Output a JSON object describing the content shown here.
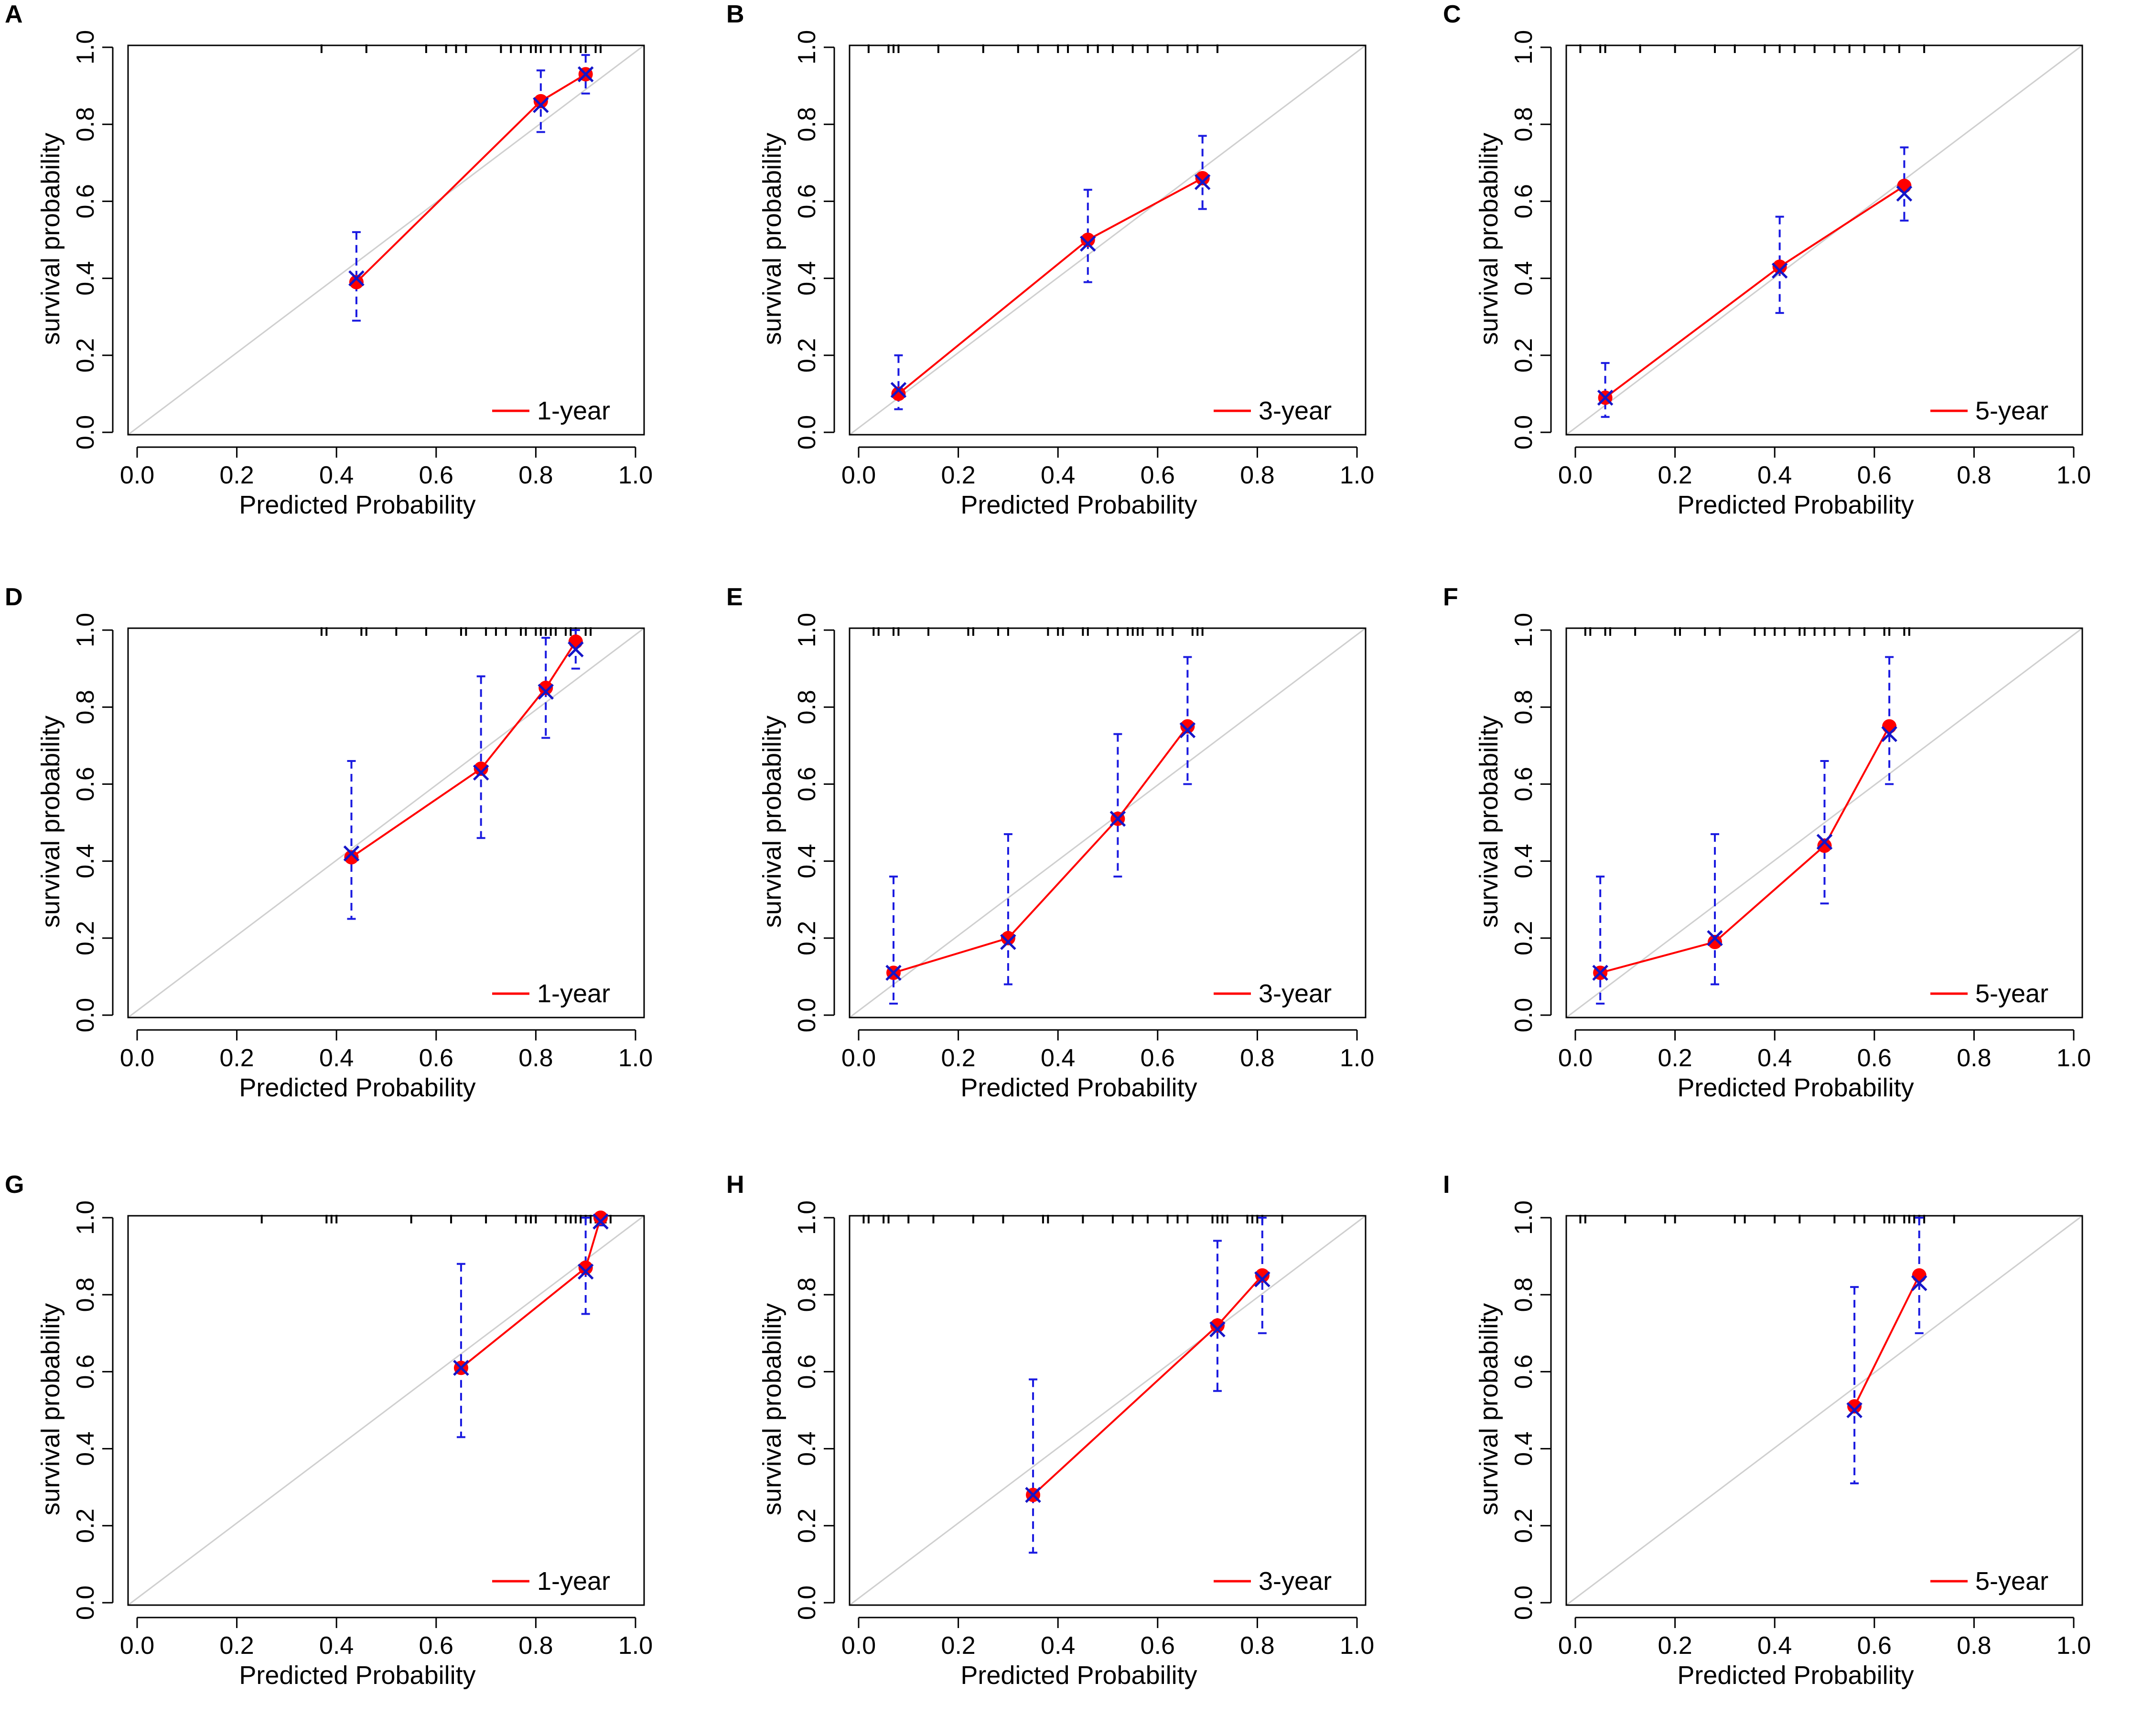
{
  "figure": {
    "background": "#ffffff"
  },
  "colors": {
    "calibration_line": "#ff0000",
    "calibration_point": "#ff0000",
    "observed_marker": "#1515c8",
    "error_bar": "#1a1ae0",
    "ideal_line": "#cfcfcf",
    "axis": "#000000",
    "rug": "#000000"
  },
  "chart_data": [
    {
      "panel": "A",
      "type": "line",
      "legend": "1-year",
      "xlabel": "Predicted Probability",
      "ylabel": "survival probability",
      "xlim": [
        0,
        1
      ],
      "ylim": [
        0,
        1
      ],
      "xticks": [
        "0.0",
        "0.2",
        "0.4",
        "0.6",
        "0.8",
        "1.0"
      ],
      "yticks": [
        "0.0",
        "0.2",
        "0.4",
        "0.6",
        "0.8",
        "1.0"
      ],
      "x": [
        0.44,
        0.81,
        0.9
      ],
      "predicted": [
        0.39,
        0.86,
        0.93
      ],
      "observed": [
        0.4,
        0.85,
        0.93
      ],
      "lower": [
        0.29,
        0.78,
        0.88
      ],
      "upper": [
        0.52,
        0.94,
        0.98
      ],
      "rug": [
        0.37,
        0.46,
        0.58,
        0.62,
        0.64,
        0.66,
        0.73,
        0.75,
        0.77,
        0.79,
        0.8,
        0.81,
        0.83,
        0.85,
        0.87,
        0.89,
        0.9,
        0.92,
        0.93
      ]
    },
    {
      "panel": "B",
      "type": "line",
      "legend": "3-year",
      "xlabel": "Predicted Probability",
      "ylabel": "survival probability",
      "xlim": [
        0,
        1
      ],
      "ylim": [
        0,
        1
      ],
      "xticks": [
        "0.0",
        "0.2",
        "0.4",
        "0.6",
        "0.8",
        "1.0"
      ],
      "yticks": [
        "0.0",
        "0.2",
        "0.4",
        "0.6",
        "0.8",
        "1.0"
      ],
      "x": [
        0.08,
        0.46,
        0.69
      ],
      "predicted": [
        0.1,
        0.5,
        0.66
      ],
      "observed": [
        0.11,
        0.49,
        0.65
      ],
      "lower": [
        0.06,
        0.39,
        0.58
      ],
      "upper": [
        0.2,
        0.63,
        0.77
      ],
      "rug": [
        0.02,
        0.06,
        0.07,
        0.08,
        0.16,
        0.25,
        0.32,
        0.36,
        0.4,
        0.42,
        0.46,
        0.48,
        0.51,
        0.55,
        0.58,
        0.62,
        0.66,
        0.68,
        0.72
      ]
    },
    {
      "panel": "C",
      "type": "line",
      "legend": "5-year",
      "xlabel": "Predicted Probability",
      "ylabel": "survival probability",
      "xlim": [
        0,
        1
      ],
      "ylim": [
        0,
        1
      ],
      "xticks": [
        "0.0",
        "0.2",
        "0.4",
        "0.6",
        "0.8",
        "1.0"
      ],
      "yticks": [
        "0.0",
        "0.2",
        "0.4",
        "0.6",
        "0.8",
        "1.0"
      ],
      "x": [
        0.06,
        0.41,
        0.66
      ],
      "predicted": [
        0.09,
        0.43,
        0.64
      ],
      "observed": [
        0.09,
        0.42,
        0.62
      ],
      "lower": [
        0.04,
        0.31,
        0.55
      ],
      "upper": [
        0.18,
        0.56,
        0.74
      ],
      "rug": [
        0.01,
        0.05,
        0.06,
        0.13,
        0.2,
        0.28,
        0.32,
        0.38,
        0.41,
        0.44,
        0.48,
        0.52,
        0.55,
        0.58,
        0.62,
        0.65,
        0.7
      ]
    },
    {
      "panel": "D",
      "type": "line",
      "legend": "1-year",
      "xlabel": "Predicted Probability",
      "ylabel": "survival probability",
      "xlim": [
        0,
        1
      ],
      "ylim": [
        0,
        1
      ],
      "xticks": [
        "0.0",
        "0.2",
        "0.4",
        "0.6",
        "0.8",
        "1.0"
      ],
      "yticks": [
        "0.0",
        "0.2",
        "0.4",
        "0.6",
        "0.8",
        "1.0"
      ],
      "x": [
        0.43,
        0.69,
        0.82,
        0.88
      ],
      "predicted": [
        0.41,
        0.64,
        0.85,
        0.97
      ],
      "observed": [
        0.42,
        0.63,
        0.84,
        0.95
      ],
      "lower": [
        0.25,
        0.46,
        0.72,
        0.9
      ],
      "upper": [
        0.66,
        0.88,
        0.98,
        1.0
      ],
      "rug": [
        0.37,
        0.38,
        0.45,
        0.46,
        0.52,
        0.58,
        0.65,
        0.66,
        0.7,
        0.72,
        0.74,
        0.77,
        0.78,
        0.8,
        0.81,
        0.82,
        0.83,
        0.84,
        0.86,
        0.87,
        0.88,
        0.9,
        0.91
      ]
    },
    {
      "panel": "E",
      "type": "line",
      "legend": "3-year",
      "xlabel": "Predicted Probability",
      "ylabel": "survival probability",
      "xlim": [
        0,
        1
      ],
      "ylim": [
        0,
        1
      ],
      "xticks": [
        "0.0",
        "0.2",
        "0.4",
        "0.6",
        "0.8",
        "1.0"
      ],
      "yticks": [
        "0.0",
        "0.2",
        "0.4",
        "0.6",
        "0.8",
        "1.0"
      ],
      "x": [
        0.07,
        0.3,
        0.52,
        0.66
      ],
      "predicted": [
        0.11,
        0.2,
        0.51,
        0.75
      ],
      "observed": [
        0.11,
        0.19,
        0.51,
        0.74
      ],
      "lower": [
        0.03,
        0.08,
        0.36,
        0.6
      ],
      "upper": [
        0.36,
        0.47,
        0.73,
        0.93
      ],
      "rug": [
        0.03,
        0.04,
        0.07,
        0.08,
        0.14,
        0.22,
        0.23,
        0.28,
        0.3,
        0.38,
        0.4,
        0.41,
        0.45,
        0.46,
        0.5,
        0.52,
        0.54,
        0.55,
        0.56,
        0.57,
        0.6,
        0.61,
        0.63,
        0.67,
        0.68,
        0.69
      ]
    },
    {
      "panel": "F",
      "type": "line",
      "legend": "5-year",
      "xlabel": "Predicted Probability",
      "ylabel": "survival probability",
      "xlim": [
        0,
        1
      ],
      "ylim": [
        0,
        1
      ],
      "xticks": [
        "0.0",
        "0.2",
        "0.4",
        "0.6",
        "0.8",
        "1.0"
      ],
      "yticks": [
        "0.0",
        "0.2",
        "0.4",
        "0.6",
        "0.8",
        "1.0"
      ],
      "x": [
        0.05,
        0.28,
        0.5,
        0.63
      ],
      "predicted": [
        0.11,
        0.19,
        0.44,
        0.75
      ],
      "observed": [
        0.11,
        0.2,
        0.45,
        0.73
      ],
      "lower": [
        0.03,
        0.08,
        0.29,
        0.6
      ],
      "upper": [
        0.36,
        0.47,
        0.66,
        0.93
      ],
      "rug": [
        0.02,
        0.03,
        0.06,
        0.07,
        0.12,
        0.2,
        0.21,
        0.26,
        0.29,
        0.36,
        0.38,
        0.4,
        0.42,
        0.45,
        0.46,
        0.48,
        0.5,
        0.52,
        0.55,
        0.58,
        0.62,
        0.63,
        0.66,
        0.67
      ]
    },
    {
      "panel": "G",
      "type": "line",
      "legend": "1-year",
      "xlabel": "Predicted Probability",
      "ylabel": "survival probability",
      "xlim": [
        0,
        1
      ],
      "ylim": [
        0,
        1
      ],
      "xticks": [
        "0.0",
        "0.2",
        "0.4",
        "0.6",
        "0.8",
        "1.0"
      ],
      "yticks": [
        "0.0",
        "0.2",
        "0.4",
        "0.6",
        "0.8",
        "1.0"
      ],
      "x": [
        0.65,
        0.9,
        0.93
      ],
      "predicted": [
        0.61,
        0.87,
        1.0
      ],
      "observed": [
        0.61,
        0.86,
        0.99
      ],
      "lower": [
        0.43,
        0.75,
        0.98
      ],
      "upper": [
        0.88,
        1.0,
        1.0
      ],
      "rug": [
        0.25,
        0.38,
        0.39,
        0.4,
        0.55,
        0.63,
        0.7,
        0.76,
        0.78,
        0.79,
        0.8,
        0.84,
        0.86,
        0.87,
        0.88,
        0.89,
        0.9,
        0.91,
        0.92,
        0.93,
        0.94,
        0.95
      ]
    },
    {
      "panel": "H",
      "type": "line",
      "legend": "3-year",
      "xlabel": "Predicted Probability",
      "ylabel": "survival probability",
      "xlim": [
        0,
        1
      ],
      "ylim": [
        0,
        1
      ],
      "xticks": [
        "0.0",
        "0.2",
        "0.4",
        "0.6",
        "0.8",
        "1.0"
      ],
      "yticks": [
        "0.0",
        "0.2",
        "0.4",
        "0.6",
        "0.8",
        "1.0"
      ],
      "x": [
        0.35,
        0.72,
        0.81
      ],
      "predicted": [
        0.28,
        0.72,
        0.85
      ],
      "observed": [
        0.28,
        0.71,
        0.84
      ],
      "lower": [
        0.13,
        0.55,
        0.7
      ],
      "upper": [
        0.58,
        0.94,
        1.0
      ],
      "rug": [
        0.01,
        0.02,
        0.05,
        0.06,
        0.1,
        0.15,
        0.23,
        0.29,
        0.37,
        0.38,
        0.45,
        0.51,
        0.55,
        0.58,
        0.62,
        0.64,
        0.66,
        0.71,
        0.72,
        0.73,
        0.74,
        0.78,
        0.79,
        0.8,
        0.81,
        0.85
      ]
    },
    {
      "panel": "I",
      "type": "line",
      "legend": "5-year",
      "xlabel": "Predicted Probability",
      "ylabel": "survival probability",
      "xlim": [
        0,
        1
      ],
      "ylim": [
        0,
        1
      ],
      "xticks": [
        "0.0",
        "0.2",
        "0.4",
        "0.6",
        "0.8",
        "1.0"
      ],
      "yticks": [
        "0.0",
        "0.2",
        "0.4",
        "0.6",
        "0.8",
        "1.0"
      ],
      "x": [
        0.56,
        0.69
      ],
      "predicted": [
        0.51,
        0.85
      ],
      "observed": [
        0.5,
        0.83
      ],
      "lower": [
        0.31,
        0.7
      ],
      "upper": [
        0.82,
        1.0
      ],
      "rug": [
        0.01,
        0.02,
        0.1,
        0.18,
        0.2,
        0.32,
        0.34,
        0.4,
        0.45,
        0.52,
        0.56,
        0.58,
        0.62,
        0.63,
        0.64,
        0.66,
        0.67,
        0.68,
        0.69,
        0.7,
        0.76
      ]
    }
  ]
}
